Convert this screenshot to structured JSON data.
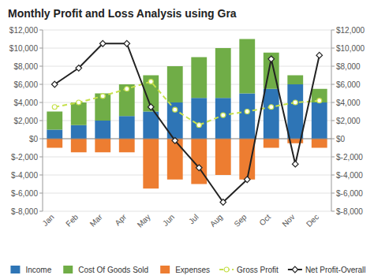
{
  "chart_data": {
    "type": "bar",
    "title": "Monthly Profit and Loss Analysis using Gra",
    "categories": [
      "Jan",
      "Feb",
      "Mar",
      "Apr",
      "May",
      "Jun",
      "Jul",
      "Aug",
      "Sep",
      "Oct",
      "Nov",
      "Dec"
    ],
    "stacked": true,
    "grid": true,
    "legend": "bottom",
    "ylim": [
      -8000,
      12000
    ],
    "yticks": [
      {
        "value": -8000,
        "label": "$-8,000"
      },
      {
        "value": -6000,
        "label": "$-6,000"
      },
      {
        "value": -4000,
        "label": "$-4,000"
      },
      {
        "value": -2000,
        "label": "$-2,000"
      },
      {
        "value": 0,
        "label": "$0"
      },
      {
        "value": 2000,
        "label": "$2,000"
      },
      {
        "value": 4000,
        "label": "$4,000"
      },
      {
        "value": 6000,
        "label": "$6,000"
      },
      {
        "value": 8000,
        "label": "$8,000"
      },
      {
        "value": 10000,
        "label": "$10,000"
      },
      {
        "value": 12000,
        "label": "$12,000"
      }
    ],
    "y2lim": [
      -8000,
      12000
    ],
    "y2ticks": [
      {
        "value": -8000,
        "label": "$-8,000"
      },
      {
        "value": -6000,
        "label": "$-6,000"
      },
      {
        "value": -4000,
        "label": "$-4,000"
      },
      {
        "value": -2000,
        "label": "$-2,000"
      },
      {
        "value": 0,
        "label": "$0"
      },
      {
        "value": 2000,
        "label": "$2,000"
      },
      {
        "value": 4000,
        "label": "$4,000"
      },
      {
        "value": 6000,
        "label": "$6,000"
      },
      {
        "value": 8000,
        "label": "$8,000"
      },
      {
        "value": 10000,
        "label": "$10,000"
      },
      {
        "value": 12000,
        "label": "$12,000"
      }
    ],
    "series": [
      {
        "name": "Income",
        "type": "bar",
        "color": "#2E75B6",
        "values": [
          1000,
          1500,
          2000,
          2500,
          3000,
          4000,
          4500,
          4500,
          5000,
          5500,
          6000,
          4000
        ]
      },
      {
        "name": "Cost Of Goods Sold",
        "type": "bar",
        "color": "#70AD47",
        "values": [
          2000,
          2500,
          3000,
          3500,
          4000,
          4000,
          4500,
          5500,
          6000,
          4000,
          1000,
          1500
        ]
      },
      {
        "name": "Expenses",
        "type": "bar",
        "color": "#ED7D31",
        "values": [
          -1000,
          -1500,
          -1500,
          -1500,
          -5500,
          -4500,
          -5000,
          -4000,
          -4500,
          -1000,
          -500,
          -1000
        ]
      },
      {
        "name": "Gross Profit",
        "type": "line",
        "axis": "y2",
        "color": "#C6E04B",
        "line_style": "dashed",
        "marker": "circle",
        "values": [
          3500,
          4000,
          4700,
          5500,
          6300,
          3200,
          1500,
          2600,
          3000,
          3500,
          4000,
          4200
        ]
      },
      {
        "name": "Net Profit-Overall",
        "type": "line",
        "axis": "y2",
        "color": "#222222",
        "line_style": "solid",
        "marker": "diamond",
        "values": [
          6000,
          7800,
          10500,
          10500,
          3500,
          -200,
          -3200,
          -7000,
          -4500,
          8800,
          -2800,
          9200
        ]
      }
    ]
  }
}
